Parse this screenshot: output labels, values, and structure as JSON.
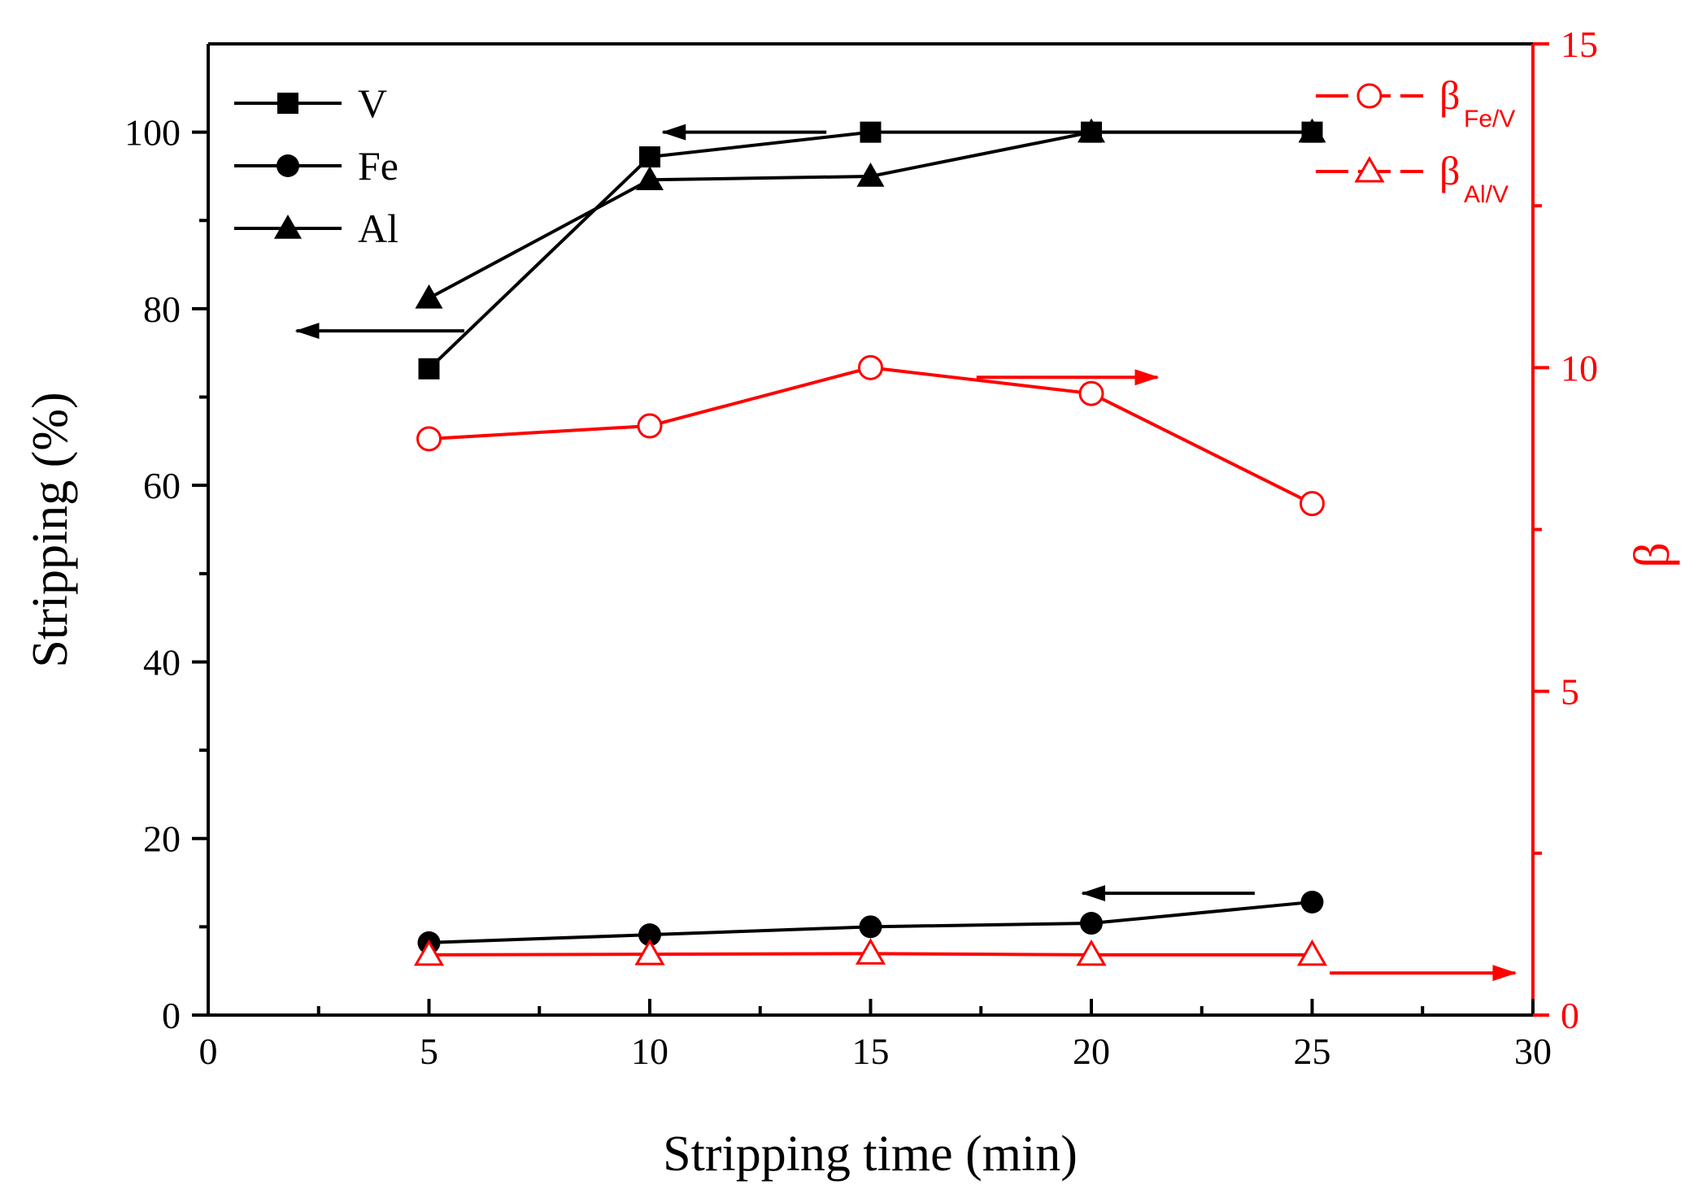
{
  "chart_data": {
    "type": "line",
    "xlabel": "Stripping time (min)",
    "ylabel": "Stripping (%)",
    "y2label": "β",
    "xlim": [
      0,
      30
    ],
    "ylim": [
      0,
      110
    ],
    "y2lim": [
      0,
      15
    ],
    "x_ticks": [
      "0",
      "5",
      "10",
      "15",
      "20",
      "25",
      "30"
    ],
    "y_ticks": [
      "0",
      "20",
      "40",
      "60",
      "80",
      "100"
    ],
    "y2_ticks": [
      "0",
      "5",
      "10",
      "15"
    ],
    "colors": {
      "primary": "#000000",
      "secondary": "#ff0000"
    },
    "x": [
      5,
      10,
      15,
      20,
      25
    ],
    "series": [
      {
        "name": "V",
        "axis": "left",
        "marker": "square",
        "color": "#000000",
        "values": [
          73.2,
          97.2,
          100,
          100,
          100
        ]
      },
      {
        "name": "Fe",
        "axis": "left",
        "marker": "circle",
        "color": "#000000",
        "values": [
          8.2,
          9.1,
          10.0,
          10.4,
          12.8
        ]
      },
      {
        "name": "Al",
        "axis": "left",
        "marker": "triangle",
        "color": "#000000",
        "values": [
          81.2,
          94.6,
          95.0,
          100,
          100
        ]
      },
      {
        "name": "β",
        "sub": "Fe/V",
        "axis": "right",
        "marker": "circle-open",
        "color": "#ff0000",
        "values": [
          8.9,
          9.1,
          10.0,
          9.6,
          7.9
        ]
      },
      {
        "name": "β",
        "sub": "Al/V",
        "axis": "right",
        "marker": "triangle-open",
        "color": "#ff0000",
        "values": [
          0.93,
          0.94,
          0.95,
          0.93,
          0.93
        ]
      }
    ],
    "annotations": [
      {
        "type": "arrow",
        "direction": "left",
        "color": "#000000",
        "x_from": 5.8,
        "x_to": 2.0,
        "y": 77.5,
        "axis": "left"
      },
      {
        "type": "arrow",
        "direction": "left",
        "color": "#000000",
        "x_from": 14.0,
        "x_to": 10.3,
        "y": 100,
        "axis": "left"
      },
      {
        "type": "arrow",
        "direction": "left",
        "color": "#000000",
        "x_from": 23.7,
        "x_to": 19.8,
        "y": 13.8,
        "axis": "left"
      },
      {
        "type": "arrow",
        "direction": "right",
        "color": "#ff0000",
        "x_from": 17.4,
        "x_to": 21.5,
        "y": 9.85,
        "axis": "right"
      },
      {
        "type": "arrow",
        "direction": "right",
        "color": "#ff0000",
        "x_from": 25.4,
        "x_to": 29.6,
        "y": 0.65,
        "axis": "right"
      }
    ],
    "legend": {
      "left": "top-left",
      "right": "top-right"
    }
  }
}
